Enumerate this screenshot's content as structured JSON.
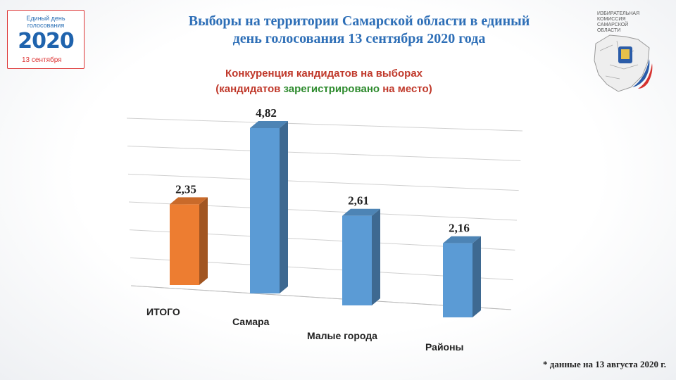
{
  "header": {
    "title_line1": "Выборы на территории Самарской области в единый",
    "title_line2": "день голосования 13 сентября 2020 года",
    "subtitle_part1": "Конкуренция кандидатов на выборах",
    "subtitle_part2_open": "(кандидатов ",
    "subtitle_part2_green": "зарегистрировано",
    "subtitle_part2_close": " на место)"
  },
  "logo_left": {
    "line1": "Единый день",
    "line2": "голосования",
    "year": "2020",
    "date": "13 сентября"
  },
  "logo_right": {
    "text": [
      "ИЗБИРАТЕЛЬНАЯ",
      "КОМИССИЯ",
      "САМАРСКОЙ",
      "ОБЛАСТИ"
    ]
  },
  "footnote": "*  данные на 13 августа 2020 г.",
  "colors": {
    "title": "#2e6fb7",
    "subtitle": "#c0392b",
    "subtitle_green": "#2e8b2e",
    "bar_blue": "#5b9bd5",
    "bar_orange": "#ed7d31"
  },
  "chart_data": {
    "type": "bar",
    "style": "3d",
    "categories": [
      "ИТОГО",
      "Самара",
      "Малые города",
      "Районы"
    ],
    "values": [
      2.35,
      4.82,
      2.61,
      2.16
    ],
    "labels": [
      "2,35",
      "4,82",
      "2,61",
      "2,16"
    ],
    "bar_colors": [
      "#ed7d31",
      "#5b9bd5",
      "#5b9bd5",
      "#5b9bd5"
    ],
    "ylim": [
      0,
      6
    ],
    "grid": true,
    "legend": "none"
  }
}
